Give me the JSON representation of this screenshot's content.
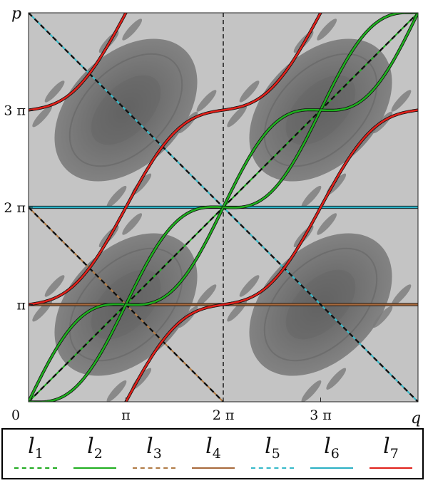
{
  "figure": {
    "axis_labels": {
      "x": "q",
      "y": "p"
    },
    "x_ticks": [
      {
        "value": 0,
        "label": "0"
      },
      {
        "value": 3.14159,
        "label": "π"
      },
      {
        "value": 6.28319,
        "label": "2 π"
      },
      {
        "value": 9.42478,
        "label": "3 π"
      }
    ],
    "y_ticks": [
      {
        "value": 3.14159,
        "label": "π"
      },
      {
        "value": 6.28319,
        "label": "2 π"
      },
      {
        "value": 9.42478,
        "label": "3 π"
      }
    ],
    "domain": {
      "q": [
        0,
        12.56637
      ],
      "p": [
        0,
        12.56637
      ]
    },
    "background_colors": {
      "sea": "#c4c4c4",
      "island": "#7d7d7d",
      "island_core": "#666666"
    },
    "dashed_reference_line": {
      "q": 6.28319,
      "color": "#000000"
    }
  },
  "chart_data": {
    "type": "line",
    "x_range": [
      0,
      12.56637
    ],
    "y_range": [
      0,
      12.56637
    ],
    "series": [
      {
        "name": "l1",
        "color": "#1faa1f",
        "style": "dashed"
      },
      {
        "name": "l2",
        "color": "#1fae1f",
        "style": "solid"
      },
      {
        "name": "l3",
        "color": "#b07a44",
        "style": "dashed"
      },
      {
        "name": "l4",
        "color": "#a8693b",
        "style": "solid"
      },
      {
        "name": "l5",
        "color": "#36b9c9",
        "style": "dashed"
      },
      {
        "name": "l6",
        "color": "#2ab0c4",
        "style": "solid"
      },
      {
        "name": "l7",
        "color": "#e0201a",
        "style": "solid"
      }
    ]
  },
  "legend": {
    "items": [
      {
        "symbol": "l",
        "index": "1",
        "color": "#1faa1f",
        "dashed": true
      },
      {
        "symbol": "l",
        "index": "2",
        "color": "#1fae1f",
        "dashed": false
      },
      {
        "symbol": "l",
        "index": "3",
        "color": "#b07a44",
        "dashed": true
      },
      {
        "symbol": "l",
        "index": "4",
        "color": "#a8693b",
        "dashed": false
      },
      {
        "symbol": "l",
        "index": "5",
        "color": "#36b9c9",
        "dashed": true
      },
      {
        "symbol": "l",
        "index": "6",
        "color": "#2ab0c4",
        "dashed": false
      },
      {
        "symbol": "l",
        "index": "7",
        "color": "#e0201a",
        "dashed": false
      }
    ]
  }
}
